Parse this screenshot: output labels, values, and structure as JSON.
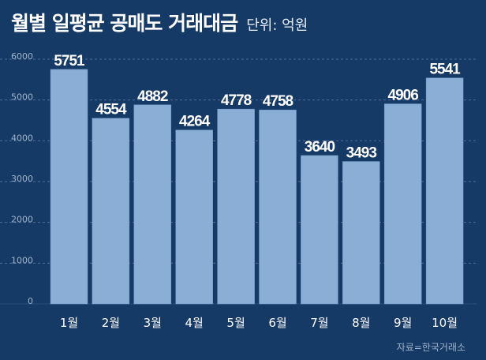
{
  "title": "월별 일평균 공매도 거래대금",
  "unit_label": "단위: 억원",
  "source": "자료=한국거래소",
  "colors": {
    "background": "#163a66",
    "bar": "#8aaed6",
    "bar_edge": "#6f96c4",
    "grid": "#4f6e96",
    "text": "#ffffff",
    "tick": "#9fb4cc"
  },
  "chart_data": {
    "type": "bar",
    "title": "월별 일평균 공매도 거래대금",
    "ylabel": "",
    "xlabel": "",
    "categories": [
      "1월",
      "2월",
      "3월",
      "4월",
      "5월",
      "6월",
      "7월",
      "8월",
      "9월",
      "10월"
    ],
    "values": [
      5751,
      4554,
      4882,
      4264,
      4778,
      4758,
      3640,
      3493,
      4906,
      5541
    ],
    "ylim": [
      0,
      6000
    ],
    "yticks": [
      "0",
      "1000",
      "2000",
      "3000",
      "4000",
      "5000",
      "6000"
    ],
    "grid": true,
    "data_labels": true
  }
}
